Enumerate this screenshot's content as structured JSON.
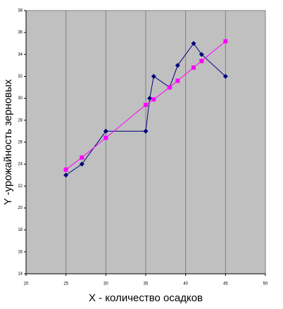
{
  "chart_data": {
    "type": "line",
    "xlabel": "X - количество осадков",
    "ylabel": "Y -урожайность зерновых",
    "xlim": [
      20,
      50
    ],
    "xticks": [
      20,
      25,
      30,
      35,
      40,
      45,
      50
    ],
    "ylim": [
      14,
      38
    ],
    "yticks": [
      14,
      16,
      18,
      20,
      22,
      24,
      26,
      28,
      30,
      32,
      34,
      36,
      38
    ],
    "grid": "x",
    "series": [
      {
        "color": "#000080",
        "marker": "diamond",
        "x": [
          25,
          27,
          30,
          35,
          35.5,
          36,
          38,
          39,
          41,
          42,
          45
        ],
        "values": [
          23,
          24,
          27,
          27,
          30,
          32,
          31,
          33,
          35,
          34,
          32
        ]
      },
      {
        "color": "#ff00ff",
        "marker": "square",
        "x": [
          25,
          27,
          30,
          35,
          36,
          38,
          39,
          41,
          42,
          45
        ],
        "values": [
          23.5,
          24.6,
          26.4,
          29.4,
          29.9,
          31.0,
          31.6,
          32.8,
          33.4,
          35.2
        ]
      }
    ]
  }
}
